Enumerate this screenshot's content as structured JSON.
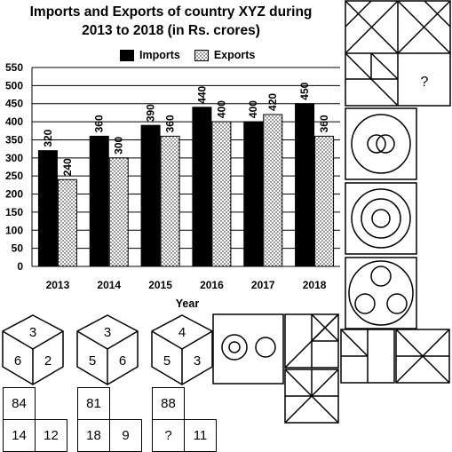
{
  "chart_data": {
    "type": "bar",
    "title_line1": "Imports and Exports of country XYZ during",
    "title_line2": "2013 to 2018 (in Rs. crores)",
    "xlabel": "Year",
    "ylabel": "",
    "ylim": [
      0,
      550
    ],
    "yticks": [
      0,
      50,
      100,
      150,
      200,
      250,
      300,
      350,
      400,
      450,
      500,
      550
    ],
    "grid": true,
    "legend_position": "top",
    "categories": [
      "2013",
      "2014",
      "2015",
      "2016",
      "2017",
      "2018"
    ],
    "series": [
      {
        "name": "Imports",
        "values": [
          320,
          360,
          390,
          440,
          400,
          450
        ],
        "style": "solid-black"
      },
      {
        "name": "Exports",
        "values": [
          240,
          300,
          360,
          400,
          420,
          360
        ],
        "style": "dotted"
      }
    ]
  },
  "figure_puzzle": {
    "question_mark": "?"
  },
  "dice": [
    {
      "top": "3",
      "left": "6",
      "right": "2"
    },
    {
      "top": "3",
      "left": "5",
      "right": "6"
    },
    {
      "top": "4",
      "left": "5",
      "right": "3"
    }
  ],
  "number_puzzle": [
    {
      "top": "84",
      "bottom_left": "14",
      "bottom_right": "12"
    },
    {
      "top": "81",
      "bottom_left": "18",
      "bottom_right": "9"
    },
    {
      "top": "88",
      "bottom_left": "?",
      "bottom_right": "11"
    }
  ],
  "colors": {
    "bar_imports": "#000000",
    "pattern_dot": "#000000",
    "grid": "#000000"
  }
}
